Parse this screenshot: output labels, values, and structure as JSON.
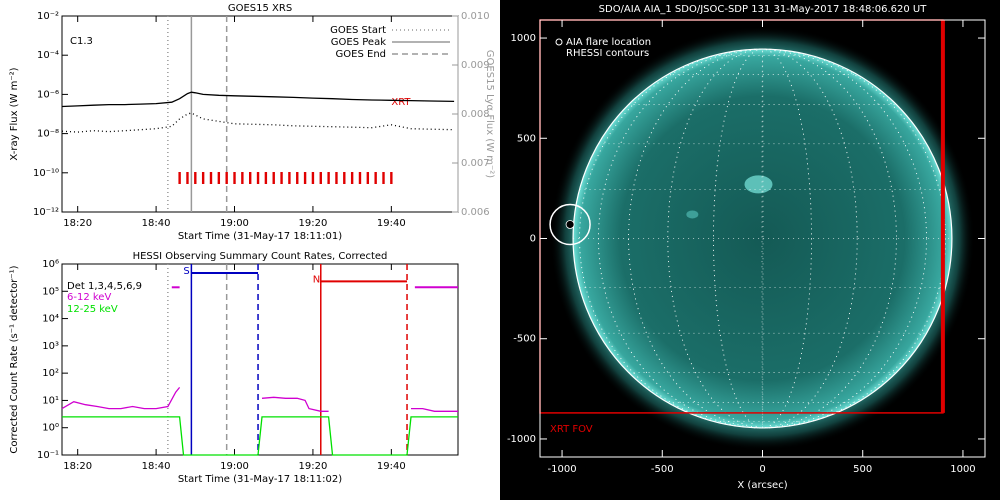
{
  "chart_data": [
    {
      "type": "line",
      "title": "GOES15 XRS",
      "xlabel": "Start Time (31-May-17 18:11:01)",
      "ylabel": "X-ray Flux (W m⁻²)",
      "y2label": "GOES15 Lyα Flux (W m⁻²)",
      "xlim": [
        "18:16",
        "19:57"
      ],
      "xticks": [
        "18:20",
        "18:40",
        "19:00",
        "19:20",
        "19:40"
      ],
      "yscale": "log",
      "ylim": [
        1e-12,
        0.01
      ],
      "yticks": [
        {
          "value": 1e-12,
          "label": "10⁻¹²"
        },
        {
          "value": 1e-10,
          "label": "10⁻¹⁰"
        },
        {
          "value": 1e-08,
          "label": "10⁻⁸"
        },
        {
          "value": 1e-06,
          "label": "10⁻⁶"
        },
        {
          "value": 0.0001,
          "label": "10⁻⁴"
        },
        {
          "value": 0.01,
          "label": "10⁻²"
        }
      ],
      "y2lim": [
        0.006,
        0.01
      ],
      "y2ticks": [
        0.006,
        0.007,
        0.008,
        0.009,
        {
          "value": 0.01,
          "label": "0.010"
        }
      ],
      "x": [
        "18:16",
        "18:20",
        "18:24",
        "18:28",
        "18:32",
        "18:36",
        "18:40",
        "18:44",
        "18:46",
        "18:48",
        "18:49",
        "18:50",
        "18:52",
        "18:56",
        "19:00",
        "19:05",
        "19:10",
        "19:15",
        "19:20",
        "19:25",
        "19:30",
        "19:35",
        "19:40",
        "19:45",
        "19:50",
        "19:56"
      ],
      "series": [
        {
          "color": "#000000",
          "style": "solid",
          "values": [
            2.4e-07,
            2.6e-07,
            2.8e-07,
            3e-07,
            3e-07,
            3.2e-07,
            3.4e-07,
            4e-07,
            6e-07,
            1.1e-06,
            1.3e-06,
            1.2e-06,
            1e-06,
            9e-07,
            8.5e-07,
            8e-07,
            7.5e-07,
            7e-07,
            6.5e-07,
            6e-07,
            5.5e-07,
            5.2e-07,
            5e-07,
            4.8e-07,
            4.6e-07,
            4.4e-07
          ]
        },
        {
          "color": "#000000",
          "style": "dotted",
          "axis": "y2",
          "values": [
            0.00765,
            0.00763,
            0.00766,
            0.00764,
            0.00766,
            0.00768,
            0.0077,
            0.00775,
            0.0079,
            0.008,
            0.00802,
            0.00798,
            0.0079,
            0.00785,
            0.0078,
            0.00779,
            0.00778,
            0.00776,
            0.00775,
            0.00774,
            0.00773,
            0.00772,
            0.00778,
            0.0077,
            0.00769,
            0.00768
          ]
        }
      ],
      "vlines": [
        {
          "name": "GOES Start",
          "x": "18:43",
          "color": "#999999",
          "style": "dotted"
        },
        {
          "name": "GOES Peak",
          "x": "18:49",
          "color": "#999999",
          "style": "solid"
        },
        {
          "name": "GOES End",
          "x": "18:58",
          "color": "#999999",
          "style": "dashed"
        }
      ],
      "flare_class": "C1.3",
      "xrt_label": "XRT",
      "xrt_color": "#e00000",
      "xrt_times": [
        "18:46",
        "18:48",
        "18:50",
        "18:52",
        "18:54",
        "18:56",
        "18:58",
        "19:00",
        "19:02",
        "19:04",
        "19:06",
        "19:08",
        "19:10",
        "19:12",
        "19:14",
        "19:16",
        "19:18",
        "19:20",
        "19:22",
        "19:24",
        "19:26",
        "19:28",
        "19:30",
        "19:32",
        "19:34",
        "19:36",
        "19:38",
        "19:40"
      ]
    },
    {
      "type": "line",
      "title": "HESSI Observing Summary Count Rates, Corrected",
      "xlabel": "Start Time (31-May-17 18:11:02)",
      "ylabel": "Corrected Count Rate (s⁻¹ detector⁻¹)",
      "legend_title": "Det 1,3,4,5,6,9",
      "xlim": [
        "18:16",
        "19:57"
      ],
      "xticks": [
        "18:20",
        "18:40",
        "19:00",
        "19:20",
        "19:40"
      ],
      "yscale": "log",
      "ylim": [
        0.1,
        1000000
      ],
      "yticks": [
        {
          "value": 0.1,
          "label": "10⁻¹"
        },
        {
          "value": 1,
          "label": "10⁰"
        },
        {
          "value": 10,
          "label": "10¹"
        },
        {
          "value": 100,
          "label": "10²"
        },
        {
          "value": 1000,
          "label": "10³"
        },
        {
          "value": 10000,
          "label": "10⁴"
        },
        {
          "value": 100000,
          "label": "10⁵"
        },
        {
          "value": 1000000,
          "label": "10⁶"
        }
      ],
      "x": [
        "18:16",
        "18:19",
        "18:22",
        "18:25",
        "18:28",
        "18:31",
        "18:34",
        "18:37",
        "18:40",
        "18:43",
        "18:45",
        "18:46",
        "18:47",
        "18:49",
        "19:06",
        "19:07",
        "19:10",
        "19:13",
        "19:16",
        "19:18",
        "19:19",
        "19:22",
        "19:24",
        "19:25",
        "19:44",
        "19:45",
        "19:48",
        "19:51",
        "19:54",
        "19:57"
      ],
      "series": [
        {
          "name": "6-12 keV",
          "color": "#d000d0",
          "style": "solid",
          "values": [
            5,
            9,
            7,
            6,
            5,
            5,
            6,
            5,
            5,
            6,
            20,
            30,
            null,
            null,
            null,
            12,
            13,
            12,
            12,
            10,
            5,
            4,
            4,
            null,
            null,
            5,
            5,
            4,
            4,
            4
          ]
        },
        {
          "name": "12-25 keV",
          "color": "#00e000",
          "style": "solid",
          "values": [
            2.5,
            2.5,
            2.5,
            2.5,
            2.5,
            2.5,
            2.5,
            2.5,
            2.5,
            2.5,
            2.5,
            2.5,
            0.1,
            0.1,
            0.1,
            2.5,
            2.5,
            2.5,
            2.5,
            2.5,
            2.5,
            2.5,
            2.5,
            0.1,
            0.1,
            2.5,
            2.5,
            2.5,
            2.5,
            2.5
          ]
        }
      ],
      "vlines": [
        {
          "x": "18:43",
          "color": "#999999",
          "style": "dotted"
        },
        {
          "x": "18:58",
          "color": "#999999",
          "style": "dashed"
        },
        {
          "x": "18:49",
          "color": "#0000c0",
          "style": "solid"
        },
        {
          "x": "19:06",
          "color": "#0000c0",
          "style": "dashed"
        },
        {
          "x": "19:22",
          "color": "#e00000",
          "style": "solid"
        },
        {
          "x": "19:44",
          "color": "#e00000",
          "style": "dashed"
        }
      ],
      "flags": [
        {
          "start": "18:44",
          "end": "18:46",
          "level": 140000,
          "color": "#d000d0"
        },
        {
          "label": "S",
          "start": "18:49",
          "end": "19:06",
          "level": 470000,
          "color": "#0000c0"
        },
        {
          "label": "N",
          "start": "19:22",
          "end": "19:44",
          "level": 230000,
          "color": "#e00000"
        },
        {
          "start": "19:46",
          "end": "19:57",
          "level": 140000,
          "color": "#d000d0"
        }
      ]
    },
    {
      "type": "image",
      "title": "SDO/AIA AIA_1 SDO/JSOC-SDP 131 31-May-2017 18:48:06.620 UT",
      "xlabel": "X (arcsec)",
      "xlim": [
        -1110,
        1110
      ],
      "ylim": [
        -1090,
        1090
      ],
      "xticks": [
        -1000,
        -500,
        0,
        500,
        1000
      ],
      "yticks": [
        -1000,
        -500,
        0,
        500,
        1000
      ],
      "disk_radius": 945,
      "flare_location": {
        "x": -960,
        "y": 70
      },
      "legend": [
        "AIA flare location",
        "RHESSI contours"
      ],
      "xrt_fov": {
        "label": "XRT FOV",
        "color": "#e00000",
        "x": [
          -1110,
          900
        ],
        "y": [
          -870,
          1090
        ]
      }
    }
  ]
}
